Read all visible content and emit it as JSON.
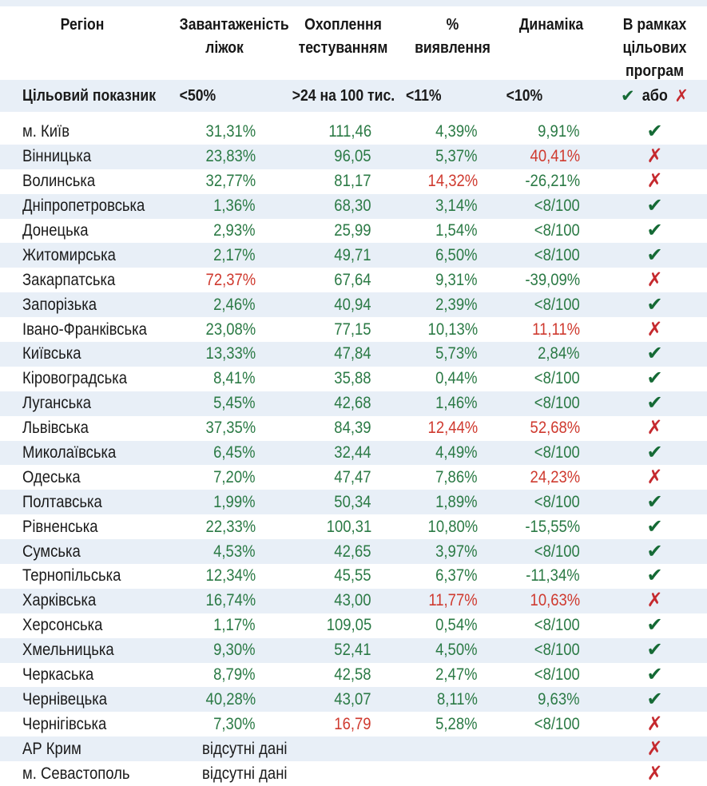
{
  "colors": {
    "band": "#e8eff7",
    "green": "#2b7a45",
    "checkgreen": "#156a35",
    "red": "#cf3a2f",
    "xred": "#c5292e"
  },
  "chart_data": {
    "type": "table",
    "title": "",
    "columns": [
      "Регіон",
      "Завантаженість\nліжок",
      "Охоплення\nтестуванням",
      "%\nвиявлення",
      "Динаміка",
      "В рамках\nцільових\nпрограм"
    ],
    "target_row": {
      "label": "Цільовий показник",
      "beds": "<50%",
      "testing": ">24 на 100 тис.",
      "detection": "<11%",
      "dynamics": "<10%",
      "or_label": "або"
    },
    "legend": {
      "pass_icon": "✔",
      "fail_icon": "✗"
    },
    "rows": [
      {
        "region": "м. Київ",
        "values": [
          {
            "t": "31,31%"
          },
          {
            "t": "111,46"
          },
          {
            "t": "4,39%"
          },
          {
            "t": "9,91%"
          }
        ],
        "pass": true
      },
      {
        "region": "Вінницька",
        "values": [
          {
            "t": "23,83%"
          },
          {
            "t": "96,05"
          },
          {
            "t": "5,37%"
          },
          {
            "t": "40,41%",
            "neg": true
          }
        ],
        "pass": false
      },
      {
        "region": "Волинська",
        "values": [
          {
            "t": "32,77%"
          },
          {
            "t": "81,17"
          },
          {
            "t": "14,32%",
            "neg": true
          },
          {
            "t": "-26,21%"
          }
        ],
        "pass": false
      },
      {
        "region": "Дніпропетровська",
        "values": [
          {
            "t": "1,36%"
          },
          {
            "t": "68,30"
          },
          {
            "t": "3,14%"
          },
          {
            "t": "<8/100"
          }
        ],
        "pass": true
      },
      {
        "region": "Донецька",
        "values": [
          {
            "t": "2,93%"
          },
          {
            "t": "25,99"
          },
          {
            "t": "1,54%"
          },
          {
            "t": "<8/100"
          }
        ],
        "pass": true
      },
      {
        "region": "Житомирська",
        "values": [
          {
            "t": "2,17%"
          },
          {
            "t": "49,71"
          },
          {
            "t": "6,50%"
          },
          {
            "t": "<8/100"
          }
        ],
        "pass": true
      },
      {
        "region": "Закарпатська",
        "values": [
          {
            "t": "72,37%",
            "neg": true
          },
          {
            "t": "67,64"
          },
          {
            "t": "9,31%"
          },
          {
            "t": "-39,09%"
          }
        ],
        "pass": false
      },
      {
        "region": "Запорізька",
        "values": [
          {
            "t": "2,46%"
          },
          {
            "t": "40,94"
          },
          {
            "t": "2,39%"
          },
          {
            "t": "<8/100"
          }
        ],
        "pass": true
      },
      {
        "region": "Івано-Франківська",
        "values": [
          {
            "t": "23,08%"
          },
          {
            "t": "77,15"
          },
          {
            "t": "10,13%"
          },
          {
            "t": "11,11%",
            "neg": true
          }
        ],
        "pass": false
      },
      {
        "region": "Київська",
        "values": [
          {
            "t": "13,33%"
          },
          {
            "t": "47,84"
          },
          {
            "t": "5,73%"
          },
          {
            "t": "2,84%"
          }
        ],
        "pass": true
      },
      {
        "region": "Кіровоградська",
        "values": [
          {
            "t": "8,41%"
          },
          {
            "t": "35,88"
          },
          {
            "t": "0,44%"
          },
          {
            "t": "<8/100"
          }
        ],
        "pass": true
      },
      {
        "region": "Луганська",
        "values": [
          {
            "t": "5,45%"
          },
          {
            "t": "42,68"
          },
          {
            "t": "1,46%"
          },
          {
            "t": "<8/100"
          }
        ],
        "pass": true
      },
      {
        "region": "Львівська",
        "values": [
          {
            "t": "37,35%"
          },
          {
            "t": "84,39"
          },
          {
            "t": "12,44%",
            "neg": true
          },
          {
            "t": "52,68%",
            "neg": true
          }
        ],
        "pass": false
      },
      {
        "region": "Миколаївська",
        "values": [
          {
            "t": "6,45%"
          },
          {
            "t": "32,44"
          },
          {
            "t": "4,49%"
          },
          {
            "t": "<8/100"
          }
        ],
        "pass": true
      },
      {
        "region": "Одеська",
        "values": [
          {
            "t": "7,20%"
          },
          {
            "t": "47,47"
          },
          {
            "t": "7,86%"
          },
          {
            "t": "24,23%",
            "neg": true
          }
        ],
        "pass": false
      },
      {
        "region": "Полтавська",
        "values": [
          {
            "t": "1,99%"
          },
          {
            "t": "50,34"
          },
          {
            "t": "1,89%"
          },
          {
            "t": "<8/100"
          }
        ],
        "pass": true
      },
      {
        "region": "Рівненська",
        "values": [
          {
            "t": "22,33%"
          },
          {
            "t": "100,31"
          },
          {
            "t": "10,80%"
          },
          {
            "t": "-15,55%"
          }
        ],
        "pass": true
      },
      {
        "region": "Сумська",
        "values": [
          {
            "t": "4,53%"
          },
          {
            "t": "42,65"
          },
          {
            "t": "3,97%"
          },
          {
            "t": "<8/100"
          }
        ],
        "pass": true
      },
      {
        "region": "Тернопільська",
        "values": [
          {
            "t": "12,34%"
          },
          {
            "t": "45,55"
          },
          {
            "t": "6,37%"
          },
          {
            "t": "-11,34%"
          }
        ],
        "pass": true
      },
      {
        "region": "Харківська",
        "values": [
          {
            "t": "16,74%"
          },
          {
            "t": "43,00"
          },
          {
            "t": "11,77%",
            "neg": true
          },
          {
            "t": "10,63%",
            "neg": true
          }
        ],
        "pass": false
      },
      {
        "region": "Херсонська",
        "values": [
          {
            "t": "1,17%"
          },
          {
            "t": "109,05"
          },
          {
            "t": "0,54%"
          },
          {
            "t": "<8/100"
          }
        ],
        "pass": true
      },
      {
        "region": "Хмельницька",
        "values": [
          {
            "t": "9,30%"
          },
          {
            "t": "52,41"
          },
          {
            "t": "4,50%"
          },
          {
            "t": "<8/100"
          }
        ],
        "pass": true
      },
      {
        "region": "Черкаська",
        "values": [
          {
            "t": "8,79%"
          },
          {
            "t": "42,58"
          },
          {
            "t": "2,47%"
          },
          {
            "t": "<8/100"
          }
        ],
        "pass": true
      },
      {
        "region": "Чернівецька",
        "values": [
          {
            "t": "40,28%"
          },
          {
            "t": "43,07"
          },
          {
            "t": "8,11%"
          },
          {
            "t": "9,63%"
          }
        ],
        "pass": true
      },
      {
        "region": "Чернігівська",
        "values": [
          {
            "t": "7,30%"
          },
          {
            "t": "16,79",
            "neg": true
          },
          {
            "t": "5,28%"
          },
          {
            "t": "<8/100"
          }
        ],
        "pass": false
      },
      {
        "region": "АР Крим",
        "no_data": "відсутні дані",
        "pass": false
      },
      {
        "region": "м. Севастополь",
        "no_data": "відсутні дані",
        "pass": false
      }
    ]
  }
}
